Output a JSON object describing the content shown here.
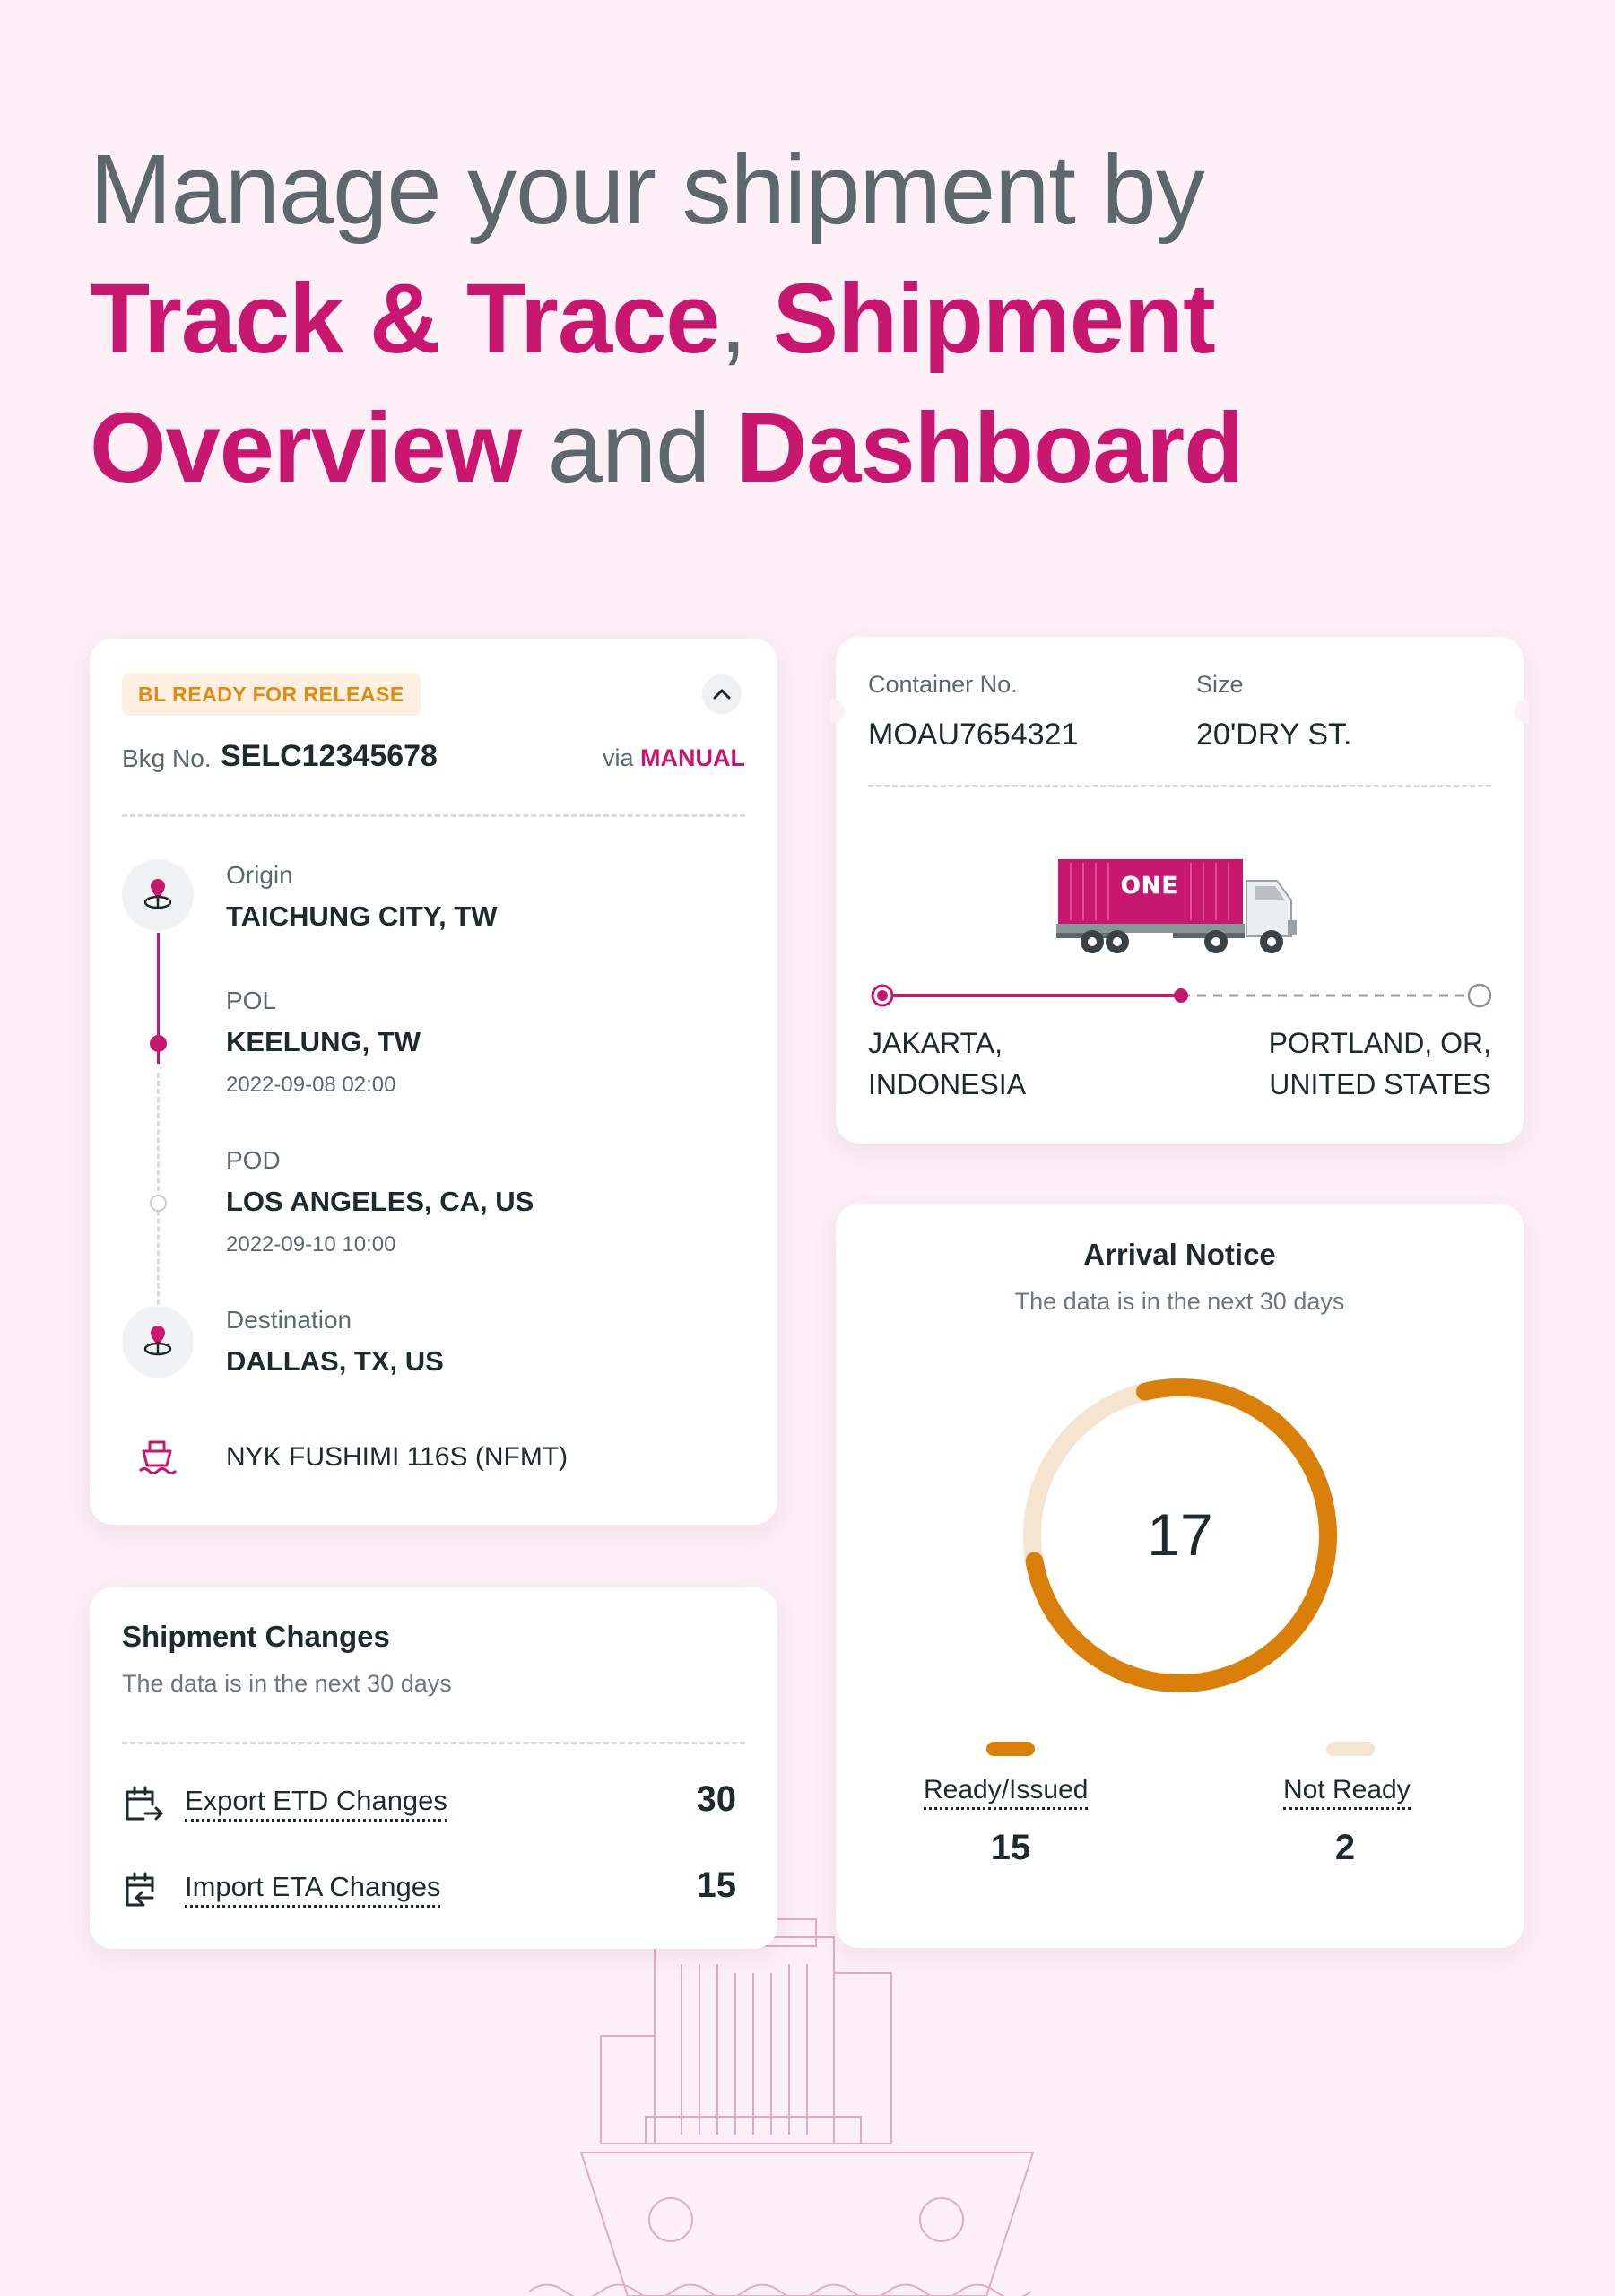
{
  "headline": {
    "line1": "Manage your shipment by",
    "hl1": "Track & Trace",
    "comma": ", ",
    "hl2": "Shipment",
    "hl3": "Overview",
    "and": " and ",
    "hl4": "Dashboard"
  },
  "booking": {
    "status": "BL READY FOR RELEASE",
    "bkg_label": "Bkg No.",
    "bkg_no": "SELC12345678",
    "via_label": "via",
    "via_value": "MANUAL",
    "origin_label": "Origin",
    "origin_value": "TAICHUNG CITY, TW",
    "pol_label": "POL",
    "pol_value": "KEELUNG, TW",
    "pol_date": "2022-09-08 02:00",
    "pod_label": "POD",
    "pod_value": "LOS ANGELES, CA, US",
    "pod_date": "2022-09-10 10:00",
    "dest_label": "Destination",
    "dest_value": "DALLAS, TX, US",
    "vessel": "NYK FUSHIMI 116S (NFMT)"
  },
  "changes": {
    "title": "Shipment Changes",
    "subtitle": "The data is in the next 30 days",
    "items": [
      {
        "label": "Export ETD Changes",
        "value": "30"
      },
      {
        "label": "Import ETA Changes",
        "value": "15"
      }
    ]
  },
  "container": {
    "no_label": "Container No.",
    "no_value": "MOAU7654321",
    "size_label": "Size",
    "size_value": "20'DRY ST.",
    "truck_brand": "ONE",
    "from_line1": "JAKARTA,",
    "from_line2": "INDONESIA",
    "to_line1": "PORTLAND, OR,",
    "to_line2": "UNITED STATES",
    "progress": 0.5
  },
  "arrival": {
    "title": "Arrival Notice",
    "subtitle": "The data is in the next 30 days",
    "total": "17",
    "ready_label": "Ready/Issued",
    "ready_value": "15",
    "notready_label": "Not Ready",
    "notready_value": "2"
  },
  "colors": {
    "brand": "#c8176f",
    "warning": "#e08a12",
    "ready": "#db7f0b",
    "not_ready": "#f5e4cf"
  }
}
